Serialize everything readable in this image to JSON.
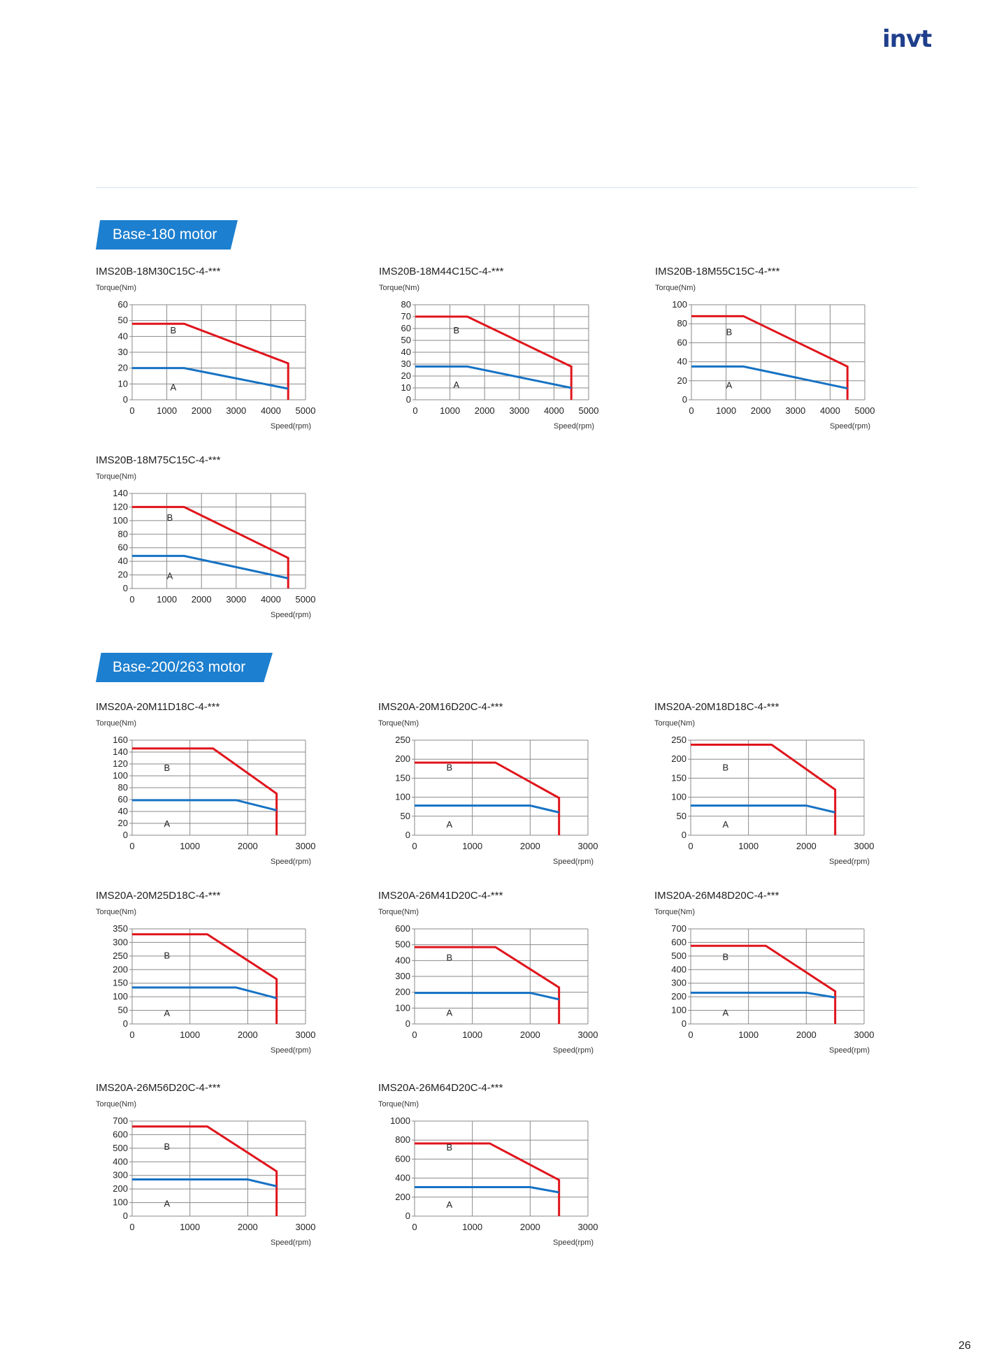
{
  "logo": "invt",
  "sections": [
    {
      "label": "Base-180 motor"
    },
    {
      "label": "Base-200/263 motor"
    }
  ],
  "colors": {
    "curve_b": "#e0141b",
    "curve_a": "#1672c4",
    "grid": "#8a8a8a",
    "section_bg": "#1d7fcf"
  },
  "page_number": "26",
  "chart_data": [
    {
      "type": "line",
      "title": "IMS20B-18M30C15C-4-***",
      "ylabel": "Torque(Nm)",
      "xlabel": "Speed(rpm)",
      "xlim": [
        0,
        5000
      ],
      "ylim": [
        0,
        60
      ],
      "xticks": [
        0,
        1000,
        2000,
        3000,
        4000,
        5000
      ],
      "yticks": [
        0,
        10,
        20,
        30,
        40,
        50,
        60
      ],
      "grid": true,
      "labels": {
        "B": [
          1100,
          42
        ],
        "A": [
          1100,
          6
        ]
      },
      "series": [
        {
          "name": "B",
          "values": [
            [
              0,
              48
            ],
            [
              1500,
              48
            ],
            [
              4500,
              23
            ],
            [
              4500,
              0
            ]
          ]
        },
        {
          "name": "A",
          "values": [
            [
              0,
              20
            ],
            [
              1500,
              20
            ],
            [
              4500,
              7
            ]
          ]
        }
      ]
    },
    {
      "type": "line",
      "title": "IMS20B-18M44C15C-4-***",
      "ylabel": "Torque(Nm)",
      "xlabel": "Speed(rpm)",
      "xlim": [
        0,
        5000
      ],
      "ylim": [
        0,
        80
      ],
      "xticks": [
        0,
        1000,
        2000,
        3000,
        4000,
        5000
      ],
      "yticks": [
        0,
        10,
        20,
        30,
        40,
        50,
        60,
        70,
        80
      ],
      "grid": true,
      "labels": {
        "B": [
          1100,
          56
        ],
        "A": [
          1100,
          10
        ]
      },
      "series": [
        {
          "name": "B",
          "values": [
            [
              0,
              70
            ],
            [
              1500,
              70
            ],
            [
              4500,
              28
            ],
            [
              4500,
              0
            ]
          ]
        },
        {
          "name": "A",
          "values": [
            [
              0,
              28
            ],
            [
              1500,
              28
            ],
            [
              4500,
              10
            ]
          ]
        }
      ]
    },
    {
      "type": "line",
      "title": "IMS20B-18M55C15C-4-***",
      "ylabel": "Torque(Nm)",
      "xlabel": "Speed(rpm)",
      "xlim": [
        0,
        5000
      ],
      "ylim": [
        0,
        100
      ],
      "xticks": [
        0,
        1000,
        2000,
        3000,
        4000,
        5000
      ],
      "yticks": [
        0,
        20,
        40,
        60,
        80,
        100
      ],
      "grid": true,
      "labels": {
        "B": [
          1000,
          68
        ],
        "A": [
          1000,
          12
        ]
      },
      "series": [
        {
          "name": "B",
          "values": [
            [
              0,
              88
            ],
            [
              1500,
              88
            ],
            [
              4500,
              35
            ],
            [
              4500,
              0
            ]
          ]
        },
        {
          "name": "A",
          "values": [
            [
              0,
              35
            ],
            [
              1500,
              35
            ],
            [
              4500,
              12
            ]
          ]
        }
      ]
    },
    {
      "type": "line",
      "title": "IMS20B-18M75C15C-4-***",
      "ylabel": "Torque(Nm)",
      "xlabel": "Speed(rpm)",
      "xlim": [
        0,
        5000
      ],
      "ylim": [
        0,
        140
      ],
      "xticks": [
        0,
        1000,
        2000,
        3000,
        4000,
        5000
      ],
      "yticks": [
        0,
        20,
        40,
        60,
        80,
        100,
        120,
        140
      ],
      "grid": true,
      "labels": {
        "B": [
          1000,
          100
        ],
        "A": [
          1000,
          14
        ]
      },
      "series": [
        {
          "name": "B",
          "values": [
            [
              0,
              120
            ],
            [
              1500,
              120
            ],
            [
              4500,
              45
            ],
            [
              4500,
              0
            ]
          ]
        },
        {
          "name": "A",
          "values": [
            [
              0,
              48
            ],
            [
              1500,
              48
            ],
            [
              4500,
              15
            ]
          ]
        }
      ]
    },
    {
      "type": "line",
      "title": "IMS20A-20M11D18C-4-***",
      "ylabel": "Torque(Nm)",
      "xlabel": "Speed(rpm)",
      "xlim": [
        0,
        3000
      ],
      "ylim": [
        0,
        160
      ],
      "xticks": [
        0,
        1000,
        2000,
        3000
      ],
      "yticks": [
        0,
        20,
        40,
        60,
        80,
        100,
        120,
        140,
        160
      ],
      "grid": true,
      "labels": {
        "B": [
          550,
          108
        ],
        "A": [
          550,
          14
        ]
      },
      "series": [
        {
          "name": "B",
          "values": [
            [
              0,
              146
            ],
            [
              1400,
              146
            ],
            [
              2500,
              70
            ],
            [
              2500,
              0
            ]
          ]
        },
        {
          "name": "A",
          "values": [
            [
              0,
              59
            ],
            [
              1800,
              59
            ],
            [
              2500,
              42
            ]
          ]
        }
      ]
    },
    {
      "type": "line",
      "title": "IMS20A-20M16D20C-4-***",
      "ylabel": "Torque(Nm)",
      "xlabel": "Speed(rpm)",
      "xlim": [
        0,
        3000
      ],
      "ylim": [
        0,
        250
      ],
      "xticks": [
        0,
        1000,
        2000,
        3000
      ],
      "yticks": [
        0,
        50,
        100,
        150,
        200,
        250
      ],
      "grid": true,
      "labels": {
        "B": [
          550,
          170
        ],
        "A": [
          550,
          20
        ]
      },
      "series": [
        {
          "name": "B",
          "values": [
            [
              0,
              191
            ],
            [
              1400,
              191
            ],
            [
              2500,
              98
            ],
            [
              2500,
              0
            ]
          ]
        },
        {
          "name": "A",
          "values": [
            [
              0,
              78
            ],
            [
              2000,
              78
            ],
            [
              2500,
              60
            ]
          ]
        }
      ]
    },
    {
      "type": "line",
      "title": "IMS20A-20M18D18C-4-***",
      "ylabel": "Torque(Nm)",
      "xlabel": "Speed(rpm)",
      "xlim": [
        0,
        3000
      ],
      "ylim": [
        0,
        250
      ],
      "xticks": [
        0,
        1000,
        2000,
        3000
      ],
      "yticks": [
        0,
        50,
        100,
        150,
        200,
        250
      ],
      "grid": true,
      "labels": {
        "B": [
          550,
          170
        ],
        "A": [
          550,
          20
        ]
      },
      "series": [
        {
          "name": "B",
          "values": [
            [
              0,
              238
            ],
            [
              1400,
              238
            ],
            [
              2500,
              120
            ],
            [
              2500,
              0
            ]
          ]
        },
        {
          "name": "A",
          "values": [
            [
              0,
              78
            ],
            [
              2000,
              78
            ],
            [
              2500,
              60
            ]
          ]
        }
      ]
    },
    {
      "type": "line",
      "title": "IMS20A-20M25D18C-4-***",
      "ylabel": "Torque(Nm)",
      "xlabel": "Speed(rpm)",
      "xlim": [
        0,
        3000
      ],
      "ylim": [
        0,
        350
      ],
      "xticks": [
        0,
        1000,
        2000,
        3000
      ],
      "yticks": [
        0,
        50,
        100,
        150,
        200,
        250,
        300,
        350
      ],
      "grid": true,
      "labels": {
        "B": [
          550,
          240
        ],
        "A": [
          550,
          28
        ]
      },
      "series": [
        {
          "name": "B",
          "values": [
            [
              0,
              330
            ],
            [
              1300,
              330
            ],
            [
              2500,
              165
            ],
            [
              2500,
              0
            ]
          ]
        },
        {
          "name": "A",
          "values": [
            [
              0,
              134
            ],
            [
              1800,
              134
            ],
            [
              2500,
              95
            ]
          ]
        }
      ]
    },
    {
      "type": "line",
      "title": "IMS20A-26M41D20C-4-***",
      "ylabel": "Torque(Nm)",
      "xlabel": "Speed(rpm)",
      "xlim": [
        0,
        3000
      ],
      "ylim": [
        0,
        600
      ],
      "xticks": [
        0,
        1000,
        2000,
        3000
      ],
      "yticks": [
        0,
        100,
        200,
        300,
        400,
        500,
        600
      ],
      "grid": true,
      "labels": {
        "B": [
          550,
          400
        ],
        "A": [
          550,
          50
        ]
      },
      "series": [
        {
          "name": "B",
          "values": [
            [
              0,
              485
            ],
            [
              1400,
              485
            ],
            [
              2500,
              230
            ],
            [
              2500,
              0
            ]
          ]
        },
        {
          "name": "A",
          "values": [
            [
              0,
              196
            ],
            [
              2000,
              196
            ],
            [
              2500,
              155
            ]
          ]
        }
      ]
    },
    {
      "type": "line",
      "title": "IMS20A-26M48D20C-4-***",
      "ylabel": "Torque(Nm)",
      "xlabel": "Speed(rpm)",
      "xlim": [
        0,
        3000
      ],
      "ylim": [
        0,
        700
      ],
      "xticks": [
        0,
        1000,
        2000,
        3000
      ],
      "yticks": [
        0,
        100,
        200,
        300,
        400,
        500,
        600,
        700
      ],
      "grid": true,
      "labels": {
        "B": [
          550,
          470
        ],
        "A": [
          550,
          60
        ]
      },
      "series": [
        {
          "name": "B",
          "values": [
            [
              0,
              575
            ],
            [
              1300,
              575
            ],
            [
              2500,
              240
            ],
            [
              2500,
              0
            ]
          ]
        },
        {
          "name": "A",
          "values": [
            [
              0,
              230
            ],
            [
              2000,
              230
            ],
            [
              2500,
              195
            ]
          ]
        }
      ]
    },
    {
      "type": "line",
      "title": "IMS20A-26M56D20C-4-***",
      "ylabel": "Torque(Nm)",
      "xlabel": "Speed(rpm)",
      "xlim": [
        0,
        3000
      ],
      "ylim": [
        0,
        700
      ],
      "xticks": [
        0,
        1000,
        2000,
        3000
      ],
      "yticks": [
        0,
        100,
        200,
        300,
        400,
        500,
        600,
        700
      ],
      "grid": true,
      "labels": {
        "B": [
          550,
          490
        ],
        "A": [
          550,
          70
        ]
      },
      "series": [
        {
          "name": "B",
          "values": [
            [
              0,
              660
            ],
            [
              1300,
              660
            ],
            [
              2500,
              330
            ],
            [
              2500,
              0
            ]
          ]
        },
        {
          "name": "A",
          "values": [
            [
              0,
              270
            ],
            [
              2000,
              270
            ],
            [
              2500,
              220
            ]
          ]
        }
      ]
    },
    {
      "type": "line",
      "title": "IMS20A-26M64D20C-4-***",
      "ylabel": "Torque(Nm)",
      "xlabel": "Speed(rpm)",
      "xlim": [
        0,
        3000
      ],
      "ylim": [
        0,
        1000
      ],
      "xticks": [
        0,
        1000,
        2000,
        3000
      ],
      "yticks": [
        0,
        200,
        400,
        600,
        800,
        1000
      ],
      "grid": true,
      "labels": {
        "B": [
          550,
          690
        ],
        "A": [
          550,
          90
        ]
      },
      "series": [
        {
          "name": "B",
          "values": [
            [
              0,
              765
            ],
            [
              1300,
              765
            ],
            [
              2500,
              380
            ],
            [
              2500,
              0
            ]
          ]
        },
        {
          "name": "A",
          "values": [
            [
              0,
              305
            ],
            [
              2000,
              305
            ],
            [
              2500,
              250
            ]
          ]
        }
      ]
    }
  ]
}
